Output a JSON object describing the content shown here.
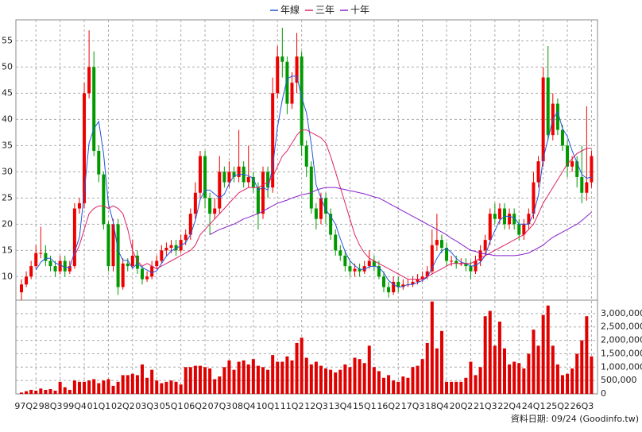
{
  "chart_data": [
    {
      "type": "candlestick",
      "legend": "top",
      "categories": [
        null,
        null,
        null,
        "97Q2",
        null,
        null,
        null,
        null,
        "98Q3",
        null,
        null,
        null,
        null,
        "99Q4",
        null,
        null,
        null,
        null,
        "01Q1",
        null,
        null,
        null,
        null,
        "02Q2",
        null,
        null,
        null,
        null,
        "03Q3",
        null,
        null,
        null,
        null,
        "05Q1",
        null,
        null,
        null,
        null,
        "06Q2",
        null,
        null,
        null,
        null,
        "07Q3",
        null,
        null,
        null,
        null,
        "08Q4",
        null,
        null,
        null,
        null,
        "10Q1",
        null,
        null,
        null,
        null,
        "11Q2",
        null,
        null,
        null,
        null,
        "12Q3",
        null,
        null,
        null,
        null,
        "13Q4",
        null,
        null,
        null,
        null,
        "15Q1",
        null,
        null,
        null,
        null,
        "16Q2",
        null,
        null,
        null,
        null,
        "17Q3",
        null,
        null,
        null,
        null,
        "18Q4",
        null,
        null,
        null,
        null,
        "20Q2",
        null,
        null,
        null,
        null,
        "21Q3",
        null,
        null,
        null,
        null,
        "22Q4",
        null,
        null,
        null,
        null,
        "24Q1",
        null,
        null,
        null,
        null,
        "25Q2",
        null,
        null,
        null,
        null,
        "26Q3"
      ],
      "open": [
        7,
        8.5,
        10,
        12,
        14.5,
        14.5,
        13,
        12,
        11,
        13,
        11,
        12,
        23,
        24,
        45,
        50,
        34,
        29.5,
        20,
        12,
        20,
        8,
        12.5,
        12,
        14,
        11.5,
        9.5,
        10,
        12,
        13,
        15,
        15.5,
        16,
        15,
        17,
        18,
        22,
        26,
        33,
        25,
        22,
        23,
        30,
        28,
        30,
        29,
        31,
        28,
        29,
        27,
        22,
        30,
        27,
        45,
        52,
        51,
        43,
        47,
        52,
        35,
        31,
        23,
        21,
        25,
        22,
        18,
        15,
        14,
        12,
        11,
        11.5,
        11,
        12,
        13,
        12,
        10,
        8,
        7,
        9,
        8,
        8.5,
        8.5,
        9,
        9.5,
        10,
        11,
        16,
        17,
        15.5,
        13,
        13,
        12.5,
        12.5,
        12,
        11,
        13,
        15,
        17,
        22,
        21,
        23,
        20,
        22,
        20,
        18,
        20,
        22,
        28,
        32,
        48,
        37,
        43,
        38,
        35,
        31,
        32,
        29,
        26,
        28
      ],
      "high": [
        9.5,
        11,
        13,
        16,
        19.5,
        16,
        14,
        13,
        14,
        14,
        13,
        24,
        25,
        47,
        57,
        53,
        35,
        30,
        20.5,
        21,
        21,
        13.5,
        13.5,
        17,
        15,
        12,
        11,
        13,
        14,
        16,
        16.5,
        17,
        17,
        18,
        19,
        23,
        28,
        34,
        34,
        26,
        25,
        33,
        31,
        32,
        31,
        38,
        32,
        35,
        30,
        28,
        31,
        31,
        48,
        54,
        57.5,
        52,
        49,
        56.5,
        53,
        36,
        32,
        24,
        26,
        26,
        23,
        19,
        16,
        15,
        13,
        12.5,
        12.5,
        13,
        15,
        14,
        13,
        11,
        9,
        10,
        10,
        9.5,
        9.5,
        10,
        10.5,
        11,
        12,
        19,
        22,
        18,
        16.5,
        14,
        14,
        13.5,
        13.5,
        13,
        14,
        16,
        18,
        23,
        24,
        24,
        24,
        23,
        23,
        21,
        21,
        23,
        30,
        33,
        50,
        54,
        45,
        44,
        39,
        36,
        33,
        33,
        35,
        42.5,
        34
      ],
      "low": [
        5.5,
        8,
        9.5,
        11.5,
        13.5,
        12,
        11,
        10,
        10.5,
        10,
        10.5,
        11.5,
        22,
        23,
        44,
        33,
        28,
        19,
        11,
        11,
        6.5,
        7.5,
        11,
        11.5,
        10.5,
        8.5,
        9,
        9.5,
        11.5,
        12.5,
        14,
        14.5,
        14,
        14.5,
        16,
        17,
        21,
        25,
        23,
        18,
        21,
        22,
        27,
        27,
        28,
        28,
        27,
        27,
        26,
        19,
        21,
        25,
        26,
        44,
        48,
        41,
        42,
        45,
        33,
        29,
        22,
        19,
        20,
        20,
        17,
        14,
        13,
        11,
        10,
        10,
        10,
        10.5,
        11.5,
        11,
        9.5,
        7,
        6,
        6.5,
        7,
        7.5,
        8,
        8,
        8.5,
        9,
        9.5,
        10.5,
        15,
        14.5,
        12,
        12,
        11.5,
        12,
        11,
        9.5,
        10.5,
        12,
        14,
        16,
        20,
        20,
        19,
        19,
        19,
        17,
        17,
        19,
        21,
        27,
        31,
        36,
        36,
        37,
        34,
        29,
        30,
        27,
        24,
        24.5,
        27
      ],
      "close": [
        8.5,
        10,
        12,
        14.5,
        14.5,
        13,
        12,
        11,
        13,
        11,
        12,
        23,
        24,
        45,
        50,
        34,
        29.5,
        20,
        12,
        20,
        8,
        12.5,
        12,
        14,
        11.5,
        9.5,
        10,
        12,
        13,
        15,
        15.5,
        16,
        15,
        17,
        18,
        22,
        26,
        33,
        25,
        22,
        23,
        30,
        28,
        30,
        29,
        31,
        28,
        29,
        27,
        22,
        30,
        27,
        45,
        52,
        51,
        43,
        47,
        52,
        35,
        31,
        23,
        21,
        25,
        22,
        18,
        15,
        14,
        12,
        11,
        11.5,
        11,
        12,
        13,
        12,
        10,
        8,
        7,
        9,
        8,
        8.5,
        8.5,
        9,
        9.5,
        10,
        11,
        16,
        17,
        15.5,
        13,
        13,
        12.5,
        12.5,
        12,
        11,
        13,
        15,
        17,
        22,
        21,
        23,
        20,
        22,
        20,
        18,
        20,
        22,
        28,
        32,
        48,
        37,
        43,
        38,
        35,
        31,
        32,
        29,
        26,
        28,
        33
      ],
      "up_color": "#ee0000",
      "down_color": "#009a00",
      "series": [
        {
          "name": "年線",
          "color": "#2255dd",
          "values": [
            null,
            null,
            null,
            11.25,
            12.75,
            13.5,
            13.5,
            12.6,
            12.25,
            11.75,
            11.75,
            14.75,
            17.5,
            26,
            35.5,
            38.25,
            39.6,
            33.4,
            23.9,
            20.4,
            15,
            13.1,
            13.1,
            11.6,
            12.5,
            11.75,
            11.25,
            10.75,
            11.1,
            12.5,
            13.9,
            14.9,
            15.4,
            15.9,
            16.5,
            18,
            20.75,
            24.75,
            26.5,
            26.5,
            25.75,
            25,
            25.75,
            27.75,
            29.25,
            29.5,
            29.5,
            29.25,
            28.75,
            26.5,
            27,
            26.5,
            31,
            38.5,
            43.75,
            47.75,
            48.25,
            48.25,
            44.25,
            41.25,
            35.25,
            27.5,
            25,
            22.75,
            21.5,
            20,
            17.25,
            14.75,
            13,
            12.1,
            11.4,
            11.4,
            11.9,
            12,
            11.75,
            10.75,
            9.25,
            8.5,
            8,
            8.1,
            8.5,
            8.5,
            8.9,
            9.25,
            9.9,
            11.6,
            13.5,
            14.9,
            15.4,
            14.6,
            13.5,
            12.75,
            12.5,
            12,
            12.1,
            12.75,
            14,
            16.75,
            18.75,
            20.75,
            21.5,
            21.5,
            21.25,
            20,
            20,
            20,
            22,
            25.5,
            32.5,
            36.25,
            40,
            41.5,
            38.25,
            36.75,
            34,
            31.75,
            29.5,
            28.75,
            29
          ]
        },
        {
          "name": "三年",
          "color": "#dd2266",
          "values": [
            null,
            null,
            null,
            null,
            null,
            null,
            null,
            null,
            null,
            null,
            null,
            14,
            16,
            19,
            22,
            23,
            23.5,
            23.5,
            23,
            23.5,
            23,
            22,
            19,
            15,
            13,
            12,
            12.5,
            12,
            11.5,
            12,
            12.5,
            13,
            13.5,
            14,
            14.5,
            15,
            16,
            18,
            19,
            20,
            21,
            22,
            23,
            24,
            25,
            26,
            26.5,
            27,
            27,
            27,
            27.5,
            28,
            29,
            31,
            33,
            34,
            35.5,
            37,
            38,
            38,
            37.5,
            37,
            36.5,
            35.5,
            33,
            30,
            27,
            24,
            21,
            18,
            16,
            14.5,
            13.5,
            13,
            12.5,
            12,
            11.5,
            11,
            10.5,
            10,
            9.5,
            9.5,
            9.5,
            9.5,
            10,
            10.5,
            11,
            11.5,
            12,
            12.5,
            12.5,
            12.5,
            12.5,
            12.5,
            13,
            13.5,
            14,
            14.5,
            15,
            15.5,
            16,
            16.5,
            17,
            17.5,
            18,
            19,
            20,
            22,
            24,
            25.5,
            27,
            28.5,
            30,
            31.5,
            32.5,
            33.5,
            34,
            34.5,
            34.5
          ]
        },
        {
          "name": "十年",
          "color": "#8822cc",
          "values": [
            null,
            null,
            null,
            null,
            null,
            null,
            null,
            null,
            null,
            null,
            null,
            null,
            null,
            null,
            null,
            null,
            null,
            null,
            null,
            null,
            null,
            null,
            null,
            null,
            null,
            null,
            null,
            null,
            null,
            null,
            null,
            null,
            null,
            null,
            null,
            null,
            null,
            null,
            null,
            18,
            18.5,
            19,
            19.3,
            19.7,
            20,
            20.5,
            21,
            21.3,
            21.7,
            22,
            22.5,
            23,
            23.5,
            24,
            24.3,
            24.6,
            25,
            25.3,
            25.6,
            25.8,
            26,
            26.5,
            26.8,
            27,
            27,
            27,
            26.8,
            26.6,
            26.4,
            26.2,
            26,
            25.8,
            25.5,
            25.2,
            25,
            24.5,
            24,
            23.5,
            23,
            22.5,
            22,
            21.5,
            21,
            20.5,
            20,
            19.5,
            19,
            18.5,
            18,
            17.3,
            16.8,
            16.2,
            15.6,
            15,
            14.8,
            14.5,
            14.3,
            14.2,
            14,
            14,
            14,
            14,
            14,
            14.1,
            14.3,
            14.5,
            15,
            15.5,
            16,
            16.8,
            17.5,
            18,
            18.5,
            19,
            19.5,
            20,
            20.7,
            21.5,
            22.3
          ]
        }
      ],
      "ylim": [
        5.5,
        59
      ],
      "yticks": [
        10,
        15,
        20,
        25,
        30,
        35,
        40,
        45,
        50,
        55
      ],
      "grid": true,
      "note": "資料日期: 09/24 (Goodinfo.tw)"
    },
    {
      "type": "bar",
      "color": "#e00000",
      "values": [
        50000,
        100000,
        150000,
        120000,
        200000,
        150000,
        180000,
        120000,
        450000,
        250000,
        150000,
        500000,
        450000,
        450000,
        500000,
        550000,
        400000,
        500000,
        550000,
        300000,
        450000,
        700000,
        700000,
        750000,
        700000,
        1100000,
        600000,
        900000,
        500000,
        400000,
        450000,
        500000,
        450000,
        350000,
        1000000,
        1000000,
        1050000,
        1050000,
        1000000,
        950000,
        550000,
        650000,
        1000000,
        1250000,
        900000,
        1200000,
        1250000,
        1100000,
        1300000,
        1050000,
        1000000,
        900000,
        1450000,
        1200000,
        1200000,
        1400000,
        1250000,
        1900000,
        2100000,
        1350000,
        1100000,
        1200000,
        1050000,
        950000,
        900000,
        800000,
        900000,
        1100000,
        1000000,
        1350000,
        1300000,
        1150000,
        1800000,
        1000000,
        850000,
        600000,
        700000,
        500000,
        450000,
        650000,
        600000,
        1000000,
        1050000,
        1300000,
        1900000,
        3450000,
        1700000,
        2350000,
        450000,
        450000,
        450000,
        450000,
        600000,
        1200000,
        700000,
        1000000,
        2900000,
        3100000,
        1800000,
        2700000,
        1700000,
        1100000,
        1200000,
        1150000,
        950000,
        1500000,
        2400000,
        1800000,
        2950000,
        3300000,
        1800000,
        1100000,
        700000,
        750000,
        950000,
        1500000,
        2000000,
        2900000,
        1400000
      ],
      "ylim": [
        0,
        3500000
      ],
      "yticks": [
        0,
        {
          "value": 500000,
          "label": "500,000"
        },
        {
          "value": 1000000,
          "label": "1,000,000"
        },
        {
          "value": 1500000,
          "label": "1,500,000"
        },
        {
          "value": 2000000,
          "label": "2,000,000"
        },
        {
          "value": 2500000,
          "label": "2,500,000"
        },
        {
          "value": 3000000,
          "label": "3,000,000"
        }
      ],
      "grid": true
    }
  ]
}
